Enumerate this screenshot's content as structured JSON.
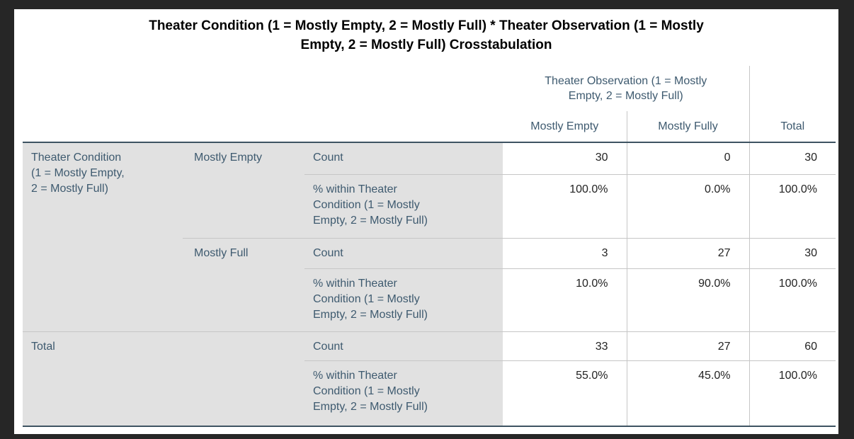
{
  "colors": {
    "page_background": "#262626",
    "card_background": "#ffffff",
    "stub_fill": "#e1e1e1",
    "thin_border": "#c6c6c6",
    "thick_border": "#3e5362",
    "label_text": "#3e5a6f",
    "data_text": "#232323",
    "title_text": "#000000"
  },
  "crosstab": {
    "title_lines": [
      "Theater Condition (1 = Mostly Empty, 2 = Mostly Full) * Theater Observation (1 = Mostly",
      "Empty, 2 = Mostly Full) Crosstabulation"
    ],
    "header": {
      "span_lines": [
        "Theater Observation (1 = Mostly",
        "Empty, 2 = Mostly Full)"
      ],
      "col_mostly_empty": "Mostly Empty",
      "col_mostly_fully": "Mostly Fully",
      "col_total": "Total"
    },
    "stub": {
      "group_label_lines": [
        "Theater Condition",
        "(1 = Mostly Empty,",
        "2 = Mostly Full)"
      ],
      "count_label": "Count",
      "percent_label_lines": [
        "% within Theater",
        "Condition (1 = Mostly",
        "Empty, 2 = Mostly Full)"
      ],
      "total_label": "Total"
    },
    "rows": {
      "mostly_empty": {
        "label": "Mostly Empty",
        "count": [
          "30",
          "0",
          "30"
        ],
        "percent": [
          "100.0%",
          "0.0%",
          "100.0%"
        ]
      },
      "mostly_full": {
        "label": "Mostly Full",
        "count": [
          "3",
          "27",
          "30"
        ],
        "percent": [
          "10.0%",
          "90.0%",
          "100.0%"
        ]
      },
      "total": {
        "count": [
          "33",
          "27",
          "60"
        ],
        "percent": [
          "55.0%",
          "45.0%",
          "100.0%"
        ]
      }
    }
  }
}
